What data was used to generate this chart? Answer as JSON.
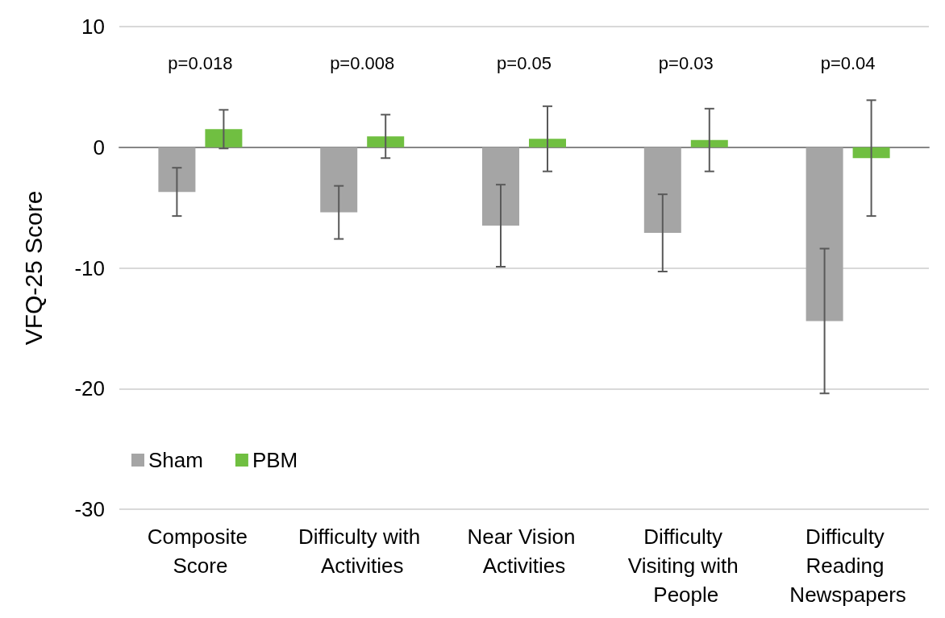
{
  "chart_data": {
    "type": "bar",
    "categories": [
      "Composite Score",
      "Difficulty with Activities",
      "Near Vision Activities",
      "Difficulty Visiting with People",
      "Difficulty Reading Newspapers"
    ],
    "series": [
      {
        "name": "Sham",
        "color": "#a5a5a5",
        "values": [
          -3.7,
          -5.4,
          -6.5,
          -7.1,
          -14.4
        ],
        "errors": [
          2.0,
          2.2,
          3.4,
          3.2,
          6.0
        ]
      },
      {
        "name": "PBM",
        "color": "#70bf41",
        "values": [
          1.5,
          0.9,
          0.7,
          0.6,
          -0.9
        ],
        "errors": [
          1.6,
          1.8,
          2.7,
          2.6,
          4.8
        ]
      }
    ],
    "ylabel": "VFQ-25 Score",
    "ylim": [
      -30,
      10
    ],
    "yticks": [
      -30,
      -20,
      -10,
      0,
      10
    ],
    "annotations": [
      "p=0.018",
      "p=0.008",
      "p=0.05",
      "p=0.03",
      "p=0.04"
    ],
    "grid": "y",
    "legend": "bottom left"
  }
}
